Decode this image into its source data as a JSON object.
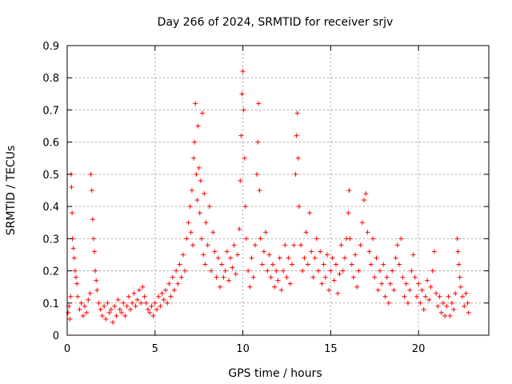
{
  "chart_data": {
    "type": "scatter",
    "title": "Day 266 of 2024, SRMTID for receiver srjv",
    "xlabel": "GPS time / hours",
    "ylabel": "SRMTID / TECUs",
    "xlim": [
      0,
      24
    ],
    "ylim": [
      0,
      0.9
    ],
    "xticks": [
      0,
      5,
      10,
      15,
      20
    ],
    "xtick_labels": [
      "0",
      "5",
      "10",
      "15",
      "20"
    ],
    "yticks": [
      0,
      0.1,
      0.2,
      0.3,
      0.4,
      0.5,
      0.6,
      0.7,
      0.8,
      0.9
    ],
    "ytick_labels": [
      "0",
      "0.1",
      "0.2",
      "0.3",
      "0.4",
      "0.5",
      "0.6",
      "0.7",
      "0.8",
      "0.9"
    ],
    "grid": true,
    "marker": "plus",
    "color": "#ff0000",
    "series": [
      {
        "name": "SRMTID",
        "points": [
          [
            0.05,
            0.07
          ],
          [
            0.1,
            0.09
          ],
          [
            0.15,
            0.05
          ],
          [
            0.2,
            0.12
          ],
          [
            0.22,
            0.5
          ],
          [
            0.25,
            0.46
          ],
          [
            0.28,
            0.38
          ],
          [
            0.3,
            0.3
          ],
          [
            0.35,
            0.27
          ],
          [
            0.4,
            0.24
          ],
          [
            0.45,
            0.2
          ],
          [
            0.5,
            0.18
          ],
          [
            0.55,
            0.16
          ],
          [
            0.6,
            0.12
          ],
          [
            0.7,
            0.08
          ],
          [
            0.8,
            0.1
          ],
          [
            0.9,
            0.06
          ],
          [
            1.0,
            0.09
          ],
          [
            1.1,
            0.07
          ],
          [
            1.2,
            0.11
          ],
          [
            1.3,
            0.13
          ],
          [
            1.35,
            0.5
          ],
          [
            1.4,
            0.45
          ],
          [
            1.45,
            0.36
          ],
          [
            1.5,
            0.3
          ],
          [
            1.55,
            0.26
          ],
          [
            1.6,
            0.2
          ],
          [
            1.65,
            0.17
          ],
          [
            1.7,
            0.14
          ],
          [
            1.8,
            0.1
          ],
          [
            1.9,
            0.08
          ],
          [
            2.0,
            0.06
          ],
          [
            2.1,
            0.09
          ],
          [
            2.2,
            0.05
          ],
          [
            2.3,
            0.1
          ],
          [
            2.4,
            0.07
          ],
          [
            2.5,
            0.08
          ],
          [
            2.6,
            0.04
          ],
          [
            2.7,
            0.09
          ],
          [
            2.8,
            0.06
          ],
          [
            2.9,
            0.11
          ],
          [
            3.0,
            0.08
          ],
          [
            3.1,
            0.07
          ],
          [
            3.2,
            0.1
          ],
          [
            3.3,
            0.06
          ],
          [
            3.4,
            0.09
          ],
          [
            3.5,
            0.12
          ],
          [
            3.6,
            0.08
          ],
          [
            3.7,
            0.1
          ],
          [
            3.8,
            0.13
          ],
          [
            3.9,
            0.09
          ],
          [
            4.0,
            0.11
          ],
          [
            4.1,
            0.14
          ],
          [
            4.2,
            0.1
          ],
          [
            4.3,
            0.15
          ],
          [
            4.4,
            0.12
          ],
          [
            4.5,
            0.1
          ],
          [
            4.6,
            0.08
          ],
          [
            4.7,
            0.07
          ],
          [
            4.8,
            0.09
          ],
          [
            4.9,
            0.06
          ],
          [
            5.0,
            0.1
          ],
          [
            5.1,
            0.08
          ],
          [
            5.2,
            0.12
          ],
          [
            5.3,
            0.09
          ],
          [
            5.4,
            0.13
          ],
          [
            5.5,
            0.11
          ],
          [
            5.6,
            0.14
          ],
          [
            5.7,
            0.1
          ],
          [
            5.8,
            0.16
          ],
          [
            5.9,
            0.12
          ],
          [
            6.0,
            0.18
          ],
          [
            6.1,
            0.14
          ],
          [
            6.2,
            0.2
          ],
          [
            6.3,
            0.16
          ],
          [
            6.4,
            0.22
          ],
          [
            6.5,
            0.18
          ],
          [
            6.6,
            0.25
          ],
          [
            6.7,
            0.2
          ],
          [
            6.8,
            0.3
          ],
          [
            6.9,
            0.35
          ],
          [
            7.0,
            0.4
          ],
          [
            7.05,
            0.32
          ],
          [
            7.1,
            0.45
          ],
          [
            7.15,
            0.28
          ],
          [
            7.2,
            0.55
          ],
          [
            7.25,
            0.6
          ],
          [
            7.3,
            0.72
          ],
          [
            7.35,
            0.5
          ],
          [
            7.4,
            0.42
          ],
          [
            7.45,
            0.65
          ],
          [
            7.5,
            0.52
          ],
          [
            7.55,
            0.38
          ],
          [
            7.6,
            0.48
          ],
          [
            7.65,
            0.3
          ],
          [
            7.7,
            0.69
          ],
          [
            7.75,
            0.25
          ],
          [
            7.8,
            0.44
          ],
          [
            7.85,
            0.22
          ],
          [
            7.9,
            0.35
          ],
          [
            8.0,
            0.28
          ],
          [
            8.1,
            0.4
          ],
          [
            8.2,
            0.2
          ],
          [
            8.3,
            0.32
          ],
          [
            8.4,
            0.26
          ],
          [
            8.5,
            0.18
          ],
          [
            8.6,
            0.24
          ],
          [
            8.7,
            0.15
          ],
          [
            8.8,
            0.22
          ],
          [
            8.9,
            0.18
          ],
          [
            9.0,
            0.2
          ],
          [
            9.1,
            0.26
          ],
          [
            9.2,
            0.17
          ],
          [
            9.3,
            0.24
          ],
          [
            9.4,
            0.21
          ],
          [
            9.5,
            0.28
          ],
          [
            9.6,
            0.19
          ],
          [
            9.7,
            0.25
          ],
          [
            9.8,
            0.33
          ],
          [
            9.85,
            0.48
          ],
          [
            9.9,
            0.62
          ],
          [
            9.95,
            0.75
          ],
          [
            10.0,
            0.82
          ],
          [
            10.05,
            0.7
          ],
          [
            10.1,
            0.55
          ],
          [
            10.15,
            0.4
          ],
          [
            10.2,
            0.3
          ],
          [
            10.3,
            0.2
          ],
          [
            10.4,
            0.15
          ],
          [
            10.5,
            0.24
          ],
          [
            10.6,
            0.18
          ],
          [
            10.7,
            0.28
          ],
          [
            10.8,
            0.5
          ],
          [
            10.85,
            0.6
          ],
          [
            10.9,
            0.72
          ],
          [
            10.95,
            0.45
          ],
          [
            11.0,
            0.3
          ],
          [
            11.1,
            0.22
          ],
          [
            11.2,
            0.26
          ],
          [
            11.3,
            0.32
          ],
          [
            11.4,
            0.2
          ],
          [
            11.5,
            0.25
          ],
          [
            11.6,
            0.18
          ],
          [
            11.7,
            0.22
          ],
          [
            11.8,
            0.15
          ],
          [
            11.9,
            0.2
          ],
          [
            12.0,
            0.17
          ],
          [
            12.1,
            0.24
          ],
          [
            12.2,
            0.14
          ],
          [
            12.3,
            0.2
          ],
          [
            12.4,
            0.28
          ],
          [
            12.5,
            0.18
          ],
          [
            12.6,
            0.24
          ],
          [
            12.7,
            0.16
          ],
          [
            12.8,
            0.22
          ],
          [
            12.9,
            0.28
          ],
          [
            13.0,
            0.5
          ],
          [
            13.05,
            0.62
          ],
          [
            13.1,
            0.69
          ],
          [
            13.15,
            0.55
          ],
          [
            13.2,
            0.4
          ],
          [
            13.3,
            0.28
          ],
          [
            13.4,
            0.2
          ],
          [
            13.5,
            0.24
          ],
          [
            13.6,
            0.32
          ],
          [
            13.7,
            0.22
          ],
          [
            13.8,
            0.38
          ],
          [
            13.9,
            0.26
          ],
          [
            14.0,
            0.18
          ],
          [
            14.1,
            0.24
          ],
          [
            14.2,
            0.3
          ],
          [
            14.3,
            0.2
          ],
          [
            14.4,
            0.26
          ],
          [
            14.5,
            0.16
          ],
          [
            14.6,
            0.22
          ],
          [
            14.7,
            0.18
          ],
          [
            14.8,
            0.25
          ],
          [
            14.9,
            0.14
          ],
          [
            15.0,
            0.2
          ],
          [
            15.1,
            0.24
          ],
          [
            15.2,
            0.17
          ],
          [
            15.3,
            0.22
          ],
          [
            15.4,
            0.13
          ],
          [
            15.5,
            0.19
          ],
          [
            15.6,
            0.28
          ],
          [
            15.7,
            0.2
          ],
          [
            15.8,
            0.24
          ],
          [
            15.9,
            0.3
          ],
          [
            16.0,
            0.38
          ],
          [
            16.05,
            0.45
          ],
          [
            16.1,
            0.3
          ],
          [
            16.2,
            0.22
          ],
          [
            16.3,
            0.18
          ],
          [
            16.4,
            0.25
          ],
          [
            16.5,
            0.15
          ],
          [
            16.6,
            0.2
          ],
          [
            16.7,
            0.28
          ],
          [
            16.8,
            0.35
          ],
          [
            16.9,
            0.42
          ],
          [
            17.0,
            0.44
          ],
          [
            17.1,
            0.32
          ],
          [
            17.2,
            0.26
          ],
          [
            17.3,
            0.22
          ],
          [
            17.4,
            0.3
          ],
          [
            17.5,
            0.18
          ],
          [
            17.6,
            0.24
          ],
          [
            17.7,
            0.14
          ],
          [
            17.8,
            0.2
          ],
          [
            17.9,
            0.16
          ],
          [
            18.0,
            0.22
          ],
          [
            18.1,
            0.12
          ],
          [
            18.2,
            0.18
          ],
          [
            18.3,
            0.1
          ],
          [
            18.4,
            0.16
          ],
          [
            18.5,
            0.2
          ],
          [
            18.6,
            0.14
          ],
          [
            18.7,
            0.24
          ],
          [
            18.8,
            0.28
          ],
          [
            18.9,
            0.22
          ],
          [
            19.0,
            0.3
          ],
          [
            19.1,
            0.18
          ],
          [
            19.2,
            0.12
          ],
          [
            19.3,
            0.16
          ],
          [
            19.4,
            0.1
          ],
          [
            19.5,
            0.14
          ],
          [
            19.6,
            0.2
          ],
          [
            19.7,
            0.25
          ],
          [
            19.8,
            0.18
          ],
          [
            19.9,
            0.12
          ],
          [
            20.0,
            0.16
          ],
          [
            20.1,
            0.1
          ],
          [
            20.2,
            0.14
          ],
          [
            20.3,
            0.08
          ],
          [
            20.4,
            0.12
          ],
          [
            20.5,
            0.17
          ],
          [
            20.6,
            0.11
          ],
          [
            20.7,
            0.15
          ],
          [
            20.8,
            0.2
          ],
          [
            20.9,
            0.26
          ],
          [
            21.0,
            0.13
          ],
          [
            21.1,
            0.09
          ],
          [
            21.2,
            0.12
          ],
          [
            21.3,
            0.07
          ],
          [
            21.4,
            0.1
          ],
          [
            21.5,
            0.06
          ],
          [
            21.6,
            0.09
          ],
          [
            21.7,
            0.12
          ],
          [
            21.8,
            0.06
          ],
          [
            21.9,
            0.1
          ],
          [
            22.0,
            0.08
          ],
          [
            22.1,
            0.13
          ],
          [
            22.2,
            0.3
          ],
          [
            22.25,
            0.26
          ],
          [
            22.3,
            0.22
          ],
          [
            22.35,
            0.18
          ],
          [
            22.4,
            0.15
          ],
          [
            22.5,
            0.12
          ],
          [
            22.6,
            0.09
          ],
          [
            22.7,
            0.13
          ],
          [
            22.8,
            0.1
          ],
          [
            22.85,
            0.07
          ]
        ]
      }
    ]
  }
}
